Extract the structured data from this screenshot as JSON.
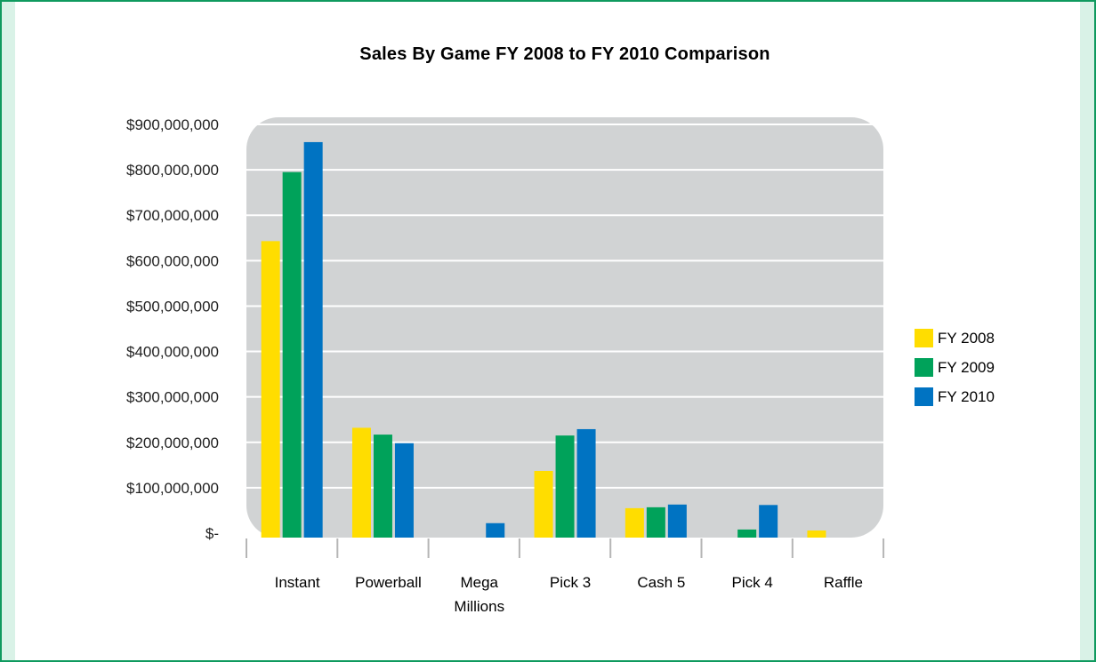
{
  "chart_data": {
    "type": "bar",
    "title": "Sales By Game FY 2008 to FY 2010 Comparison",
    "categories": [
      [
        "Instant"
      ],
      [
        "Powerball"
      ],
      [
        "Mega",
        "Millions"
      ],
      [
        "Pick 3"
      ],
      [
        "Cash 5"
      ],
      [
        "Pick 4"
      ],
      [
        "Raffle"
      ]
    ],
    "series": [
      {
        "name": "FY 2008",
        "color": "#FFDD00",
        "values": [
          643000000,
          232000000,
          0,
          137000000,
          55000000,
          0,
          1000000
        ]
      },
      {
        "name": "FY 2009",
        "color": "#00A25A",
        "values": [
          795000000,
          217000000,
          0,
          215000000,
          57000000,
          8000000,
          0
        ]
      },
      {
        "name": "FY 2010",
        "color": "#0073C2",
        "values": [
          861000000,
          198000000,
          22000000,
          229000000,
          63000000,
          62000000,
          0
        ]
      }
    ],
    "y_tick_labels": [
      "$-",
      "$100,000,000",
      "$200,000,000",
      "$300,000,000",
      "$400,000,000",
      "$500,000,000",
      "$600,000,000",
      "$700,000,000",
      "$800,000,000",
      "$900,000,000"
    ],
    "ylim": [
      0,
      900000000
    ],
    "y_step": 100000000,
    "grid": true,
    "legend_position": "right",
    "plot_background": "#D1D3D4",
    "grid_color": "#FFFFFF"
  }
}
